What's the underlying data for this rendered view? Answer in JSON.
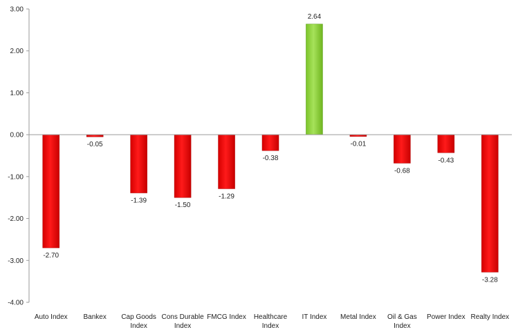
{
  "chart_data": {
    "type": "bar",
    "title": "",
    "xlabel": "",
    "ylabel": "",
    "ylim": [
      -4,
      3
    ],
    "yticks": [
      3,
      2,
      1,
      0,
      -1,
      -2,
      -3,
      -4
    ],
    "ytick_labels": [
      "3.00",
      "2.00",
      "1.00",
      "0.00",
      "-1.00",
      "-2.00",
      "-3.00",
      "-4.00"
    ],
    "categories": [
      [
        "Auto Index"
      ],
      [
        "Bankex"
      ],
      [
        "Cap Goods",
        "Index"
      ],
      [
        "Cons Durable",
        "Index"
      ],
      [
        "FMCG Index"
      ],
      [
        "Healthcare",
        "Index"
      ],
      [
        "IT Index"
      ],
      [
        "Metal Index"
      ],
      [
        "Oil & Gas",
        "Index"
      ],
      [
        "Power Index"
      ],
      [
        "Realty Index"
      ]
    ],
    "values": [
      -2.7,
      -0.05,
      -1.39,
      -1.5,
      -1.29,
      -0.38,
      2.64,
      -0.01,
      -0.68,
      -0.43,
      -3.28
    ],
    "value_labels": [
      "-2.70",
      "-0.05",
      "-1.39",
      "-1.50",
      "-1.29",
      "-0.38",
      "2.64",
      "-0.01",
      "-0.68",
      "-0.43",
      "-3.28"
    ],
    "colors": {
      "positive": "#8fd63a",
      "negative": "#ff0000",
      "axis": "#9a9a9a"
    },
    "grid": false,
    "legend": "none"
  }
}
